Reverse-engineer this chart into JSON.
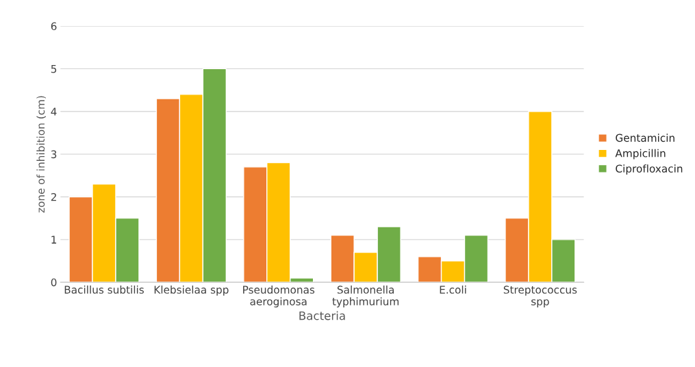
{
  "chart_data": {
    "type": "bar",
    "xlabel": "Bacteria",
    "ylabel": "zone of inhibition (cm)",
    "categories": [
      "Bacillus subtilis",
      "Klebsielaa spp",
      "Pseudomonas\naeroginosa",
      "Salmonella\ntyphimurium",
      "E.coli",
      "Streptococcus\nspp"
    ],
    "series": [
      {
        "name": "Gentamicin",
        "color": "#ed7d31",
        "values": [
          2,
          4.3,
          2.7,
          1.1,
          0.6,
          1.5
        ]
      },
      {
        "name": "Ampicillin",
        "color": "#ffc000",
        "values": [
          2.3,
          4.4,
          2.8,
          0.7,
          0.5,
          4.0
        ]
      },
      {
        "name": "Ciprofloxacin",
        "color": "#70ad47",
        "values": [
          1.5,
          5,
          0.1,
          1.3,
          1.1,
          1.0
        ]
      }
    ],
    "ylim": [
      0,
      6
    ],
    "yticks": [
      0,
      1,
      2,
      3,
      4,
      5,
      6
    ],
    "grid": "y",
    "legend": "right"
  }
}
